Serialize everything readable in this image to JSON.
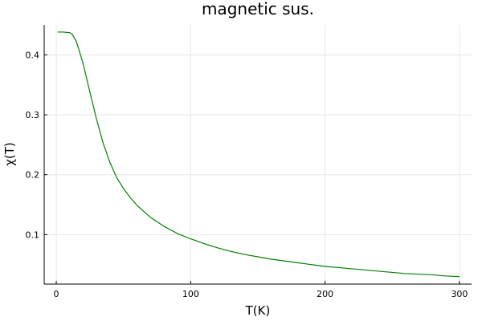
{
  "chart_data": {
    "type": "line",
    "title": "magnetic sus.",
    "xlabel": "T(K)",
    "ylabel": "χ(T)",
    "xlim": [
      -9,
      309
    ],
    "ylim": [
      0.0175,
      0.45
    ],
    "xticks": [
      0,
      100,
      200,
      300
    ],
    "yticks": [
      0.1,
      0.2,
      0.3,
      0.4
    ],
    "grid": true,
    "legend": "none",
    "series": [
      {
        "color": "#008000",
        "x": [
          1,
          5,
          10,
          12,
          15,
          18,
          20,
          25,
          30,
          35,
          40,
          45,
          50,
          55,
          60,
          70,
          80,
          90,
          100,
          110,
          120,
          130,
          140,
          150,
          160,
          170,
          180,
          190,
          200,
          210,
          220,
          230,
          240,
          250,
          260,
          270,
          280,
          290,
          300
        ],
        "y": [
          0.438,
          0.438,
          0.437,
          0.434,
          0.422,
          0.4,
          0.385,
          0.338,
          0.292,
          0.252,
          0.22,
          0.195,
          0.177,
          0.162,
          0.149,
          0.129,
          0.114,
          0.102,
          0.093,
          0.085,
          0.078,
          0.072,
          0.067,
          0.063,
          0.059,
          0.056,
          0.053,
          0.05,
          0.047,
          0.045,
          0.043,
          0.041,
          0.039,
          0.037,
          0.035,
          0.034,
          0.033,
          0.031,
          0.03
        ]
      }
    ]
  }
}
